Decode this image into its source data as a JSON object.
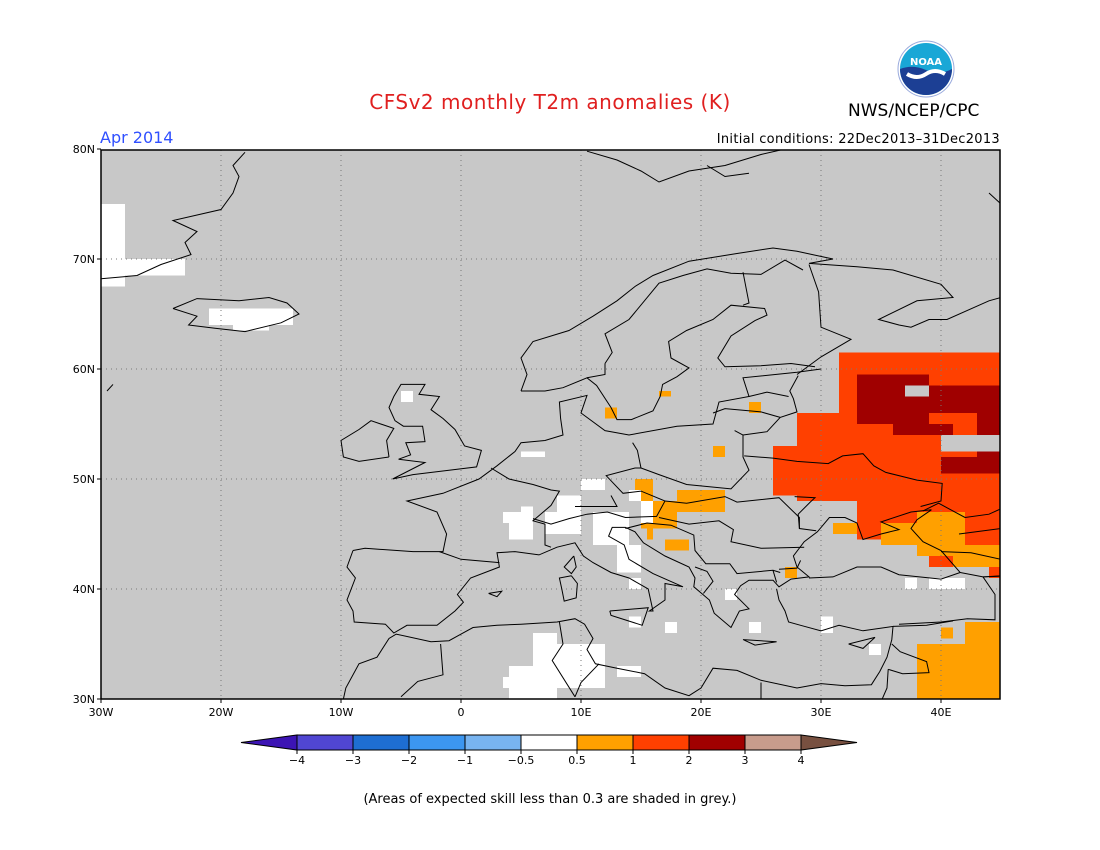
{
  "title": "CFSv2 monthly T2m anomalies (K)",
  "period_label": "Apr 2014",
  "initial_conditions": "Initial conditions: 22Dec2013–31Dec2013",
  "agency": "NWS/NCEP/CPC",
  "logo_text": "NOAA",
  "footnote": "(Areas of expected skill less than 0.3 are shaded in grey.)",
  "map": {
    "lon_range": [
      -30,
      45
    ],
    "lat_range": [
      30,
      80
    ],
    "lat_ticks": [
      "80N",
      "70N",
      "60N",
      "50N",
      "40N",
      "30N"
    ],
    "lon_ticks": [
      "30W",
      "20W",
      "10W",
      "0",
      "10E",
      "20E",
      "30E",
      "40E"
    ],
    "grid": "dotted",
    "background_color": "#c8c8c8",
    "anomaly_regions": [
      {
        "region": "western Russia / Ukraine",
        "category": "1 to 2",
        "color": "#ff4000"
      },
      {
        "region": "central European Russia",
        "category": "2 to 3",
        "color": "#a00000"
      },
      {
        "region": "Pannonian basin / Caucasus",
        "category": "0.5 to 1",
        "color": "#ffa000"
      },
      {
        "region": "Alps / Greenland / Iceland / Tunisia",
        "category": "-0.5 to 0.5",
        "color": "#ffffff"
      }
    ]
  },
  "legend": {
    "labels": [
      "-4",
      "-3",
      "-2",
      "-1",
      "-0.5",
      "0.5",
      "1",
      "2",
      "3",
      "4"
    ],
    "colors": [
      "#3c14b4",
      "#5046d2",
      "#1e6ed2",
      "#3c96f0",
      "#78b4f0",
      "#ffffff",
      "#ffa000",
      "#ff4000",
      "#a00000",
      "#c89c8c",
      "#785040"
    ]
  }
}
